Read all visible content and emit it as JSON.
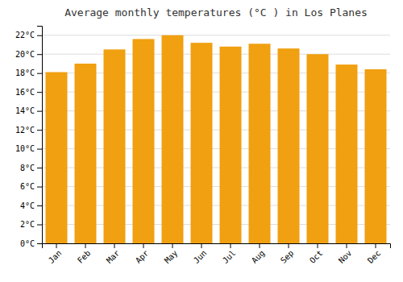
{
  "chart_data": {
    "type": "bar",
    "title": "Average monthly temperatures (°C ) in Los Planes",
    "categories": [
      "Jan",
      "Feb",
      "Mar",
      "Apr",
      "May",
      "Jun",
      "Jul",
      "Aug",
      "Sep",
      "Oct",
      "Nov",
      "Dec"
    ],
    "values": [
      18.1,
      19.0,
      20.5,
      21.6,
      22.0,
      21.2,
      20.8,
      21.1,
      20.6,
      20.0,
      18.9,
      18.4
    ],
    "color": "#F0A010",
    "ylim": [
      0,
      23
    ],
    "yticks": [
      {
        "value": 0,
        "label": "0°C"
      },
      {
        "value": 2,
        "label": "2°C"
      },
      {
        "value": 4,
        "label": "4°C"
      },
      {
        "value": 6,
        "label": "6°C"
      },
      {
        "value": 8,
        "label": "8°C"
      },
      {
        "value": 10,
        "label": "10°C"
      },
      {
        "value": 12,
        "label": "12°C"
      },
      {
        "value": 14,
        "label": "14°C"
      },
      {
        "value": 16,
        "label": "16°C"
      },
      {
        "value": 18,
        "label": "18°C"
      },
      {
        "value": 20,
        "label": "20°C"
      },
      {
        "value": 22,
        "label": "22°C"
      }
    ],
    "grid": true
  }
}
